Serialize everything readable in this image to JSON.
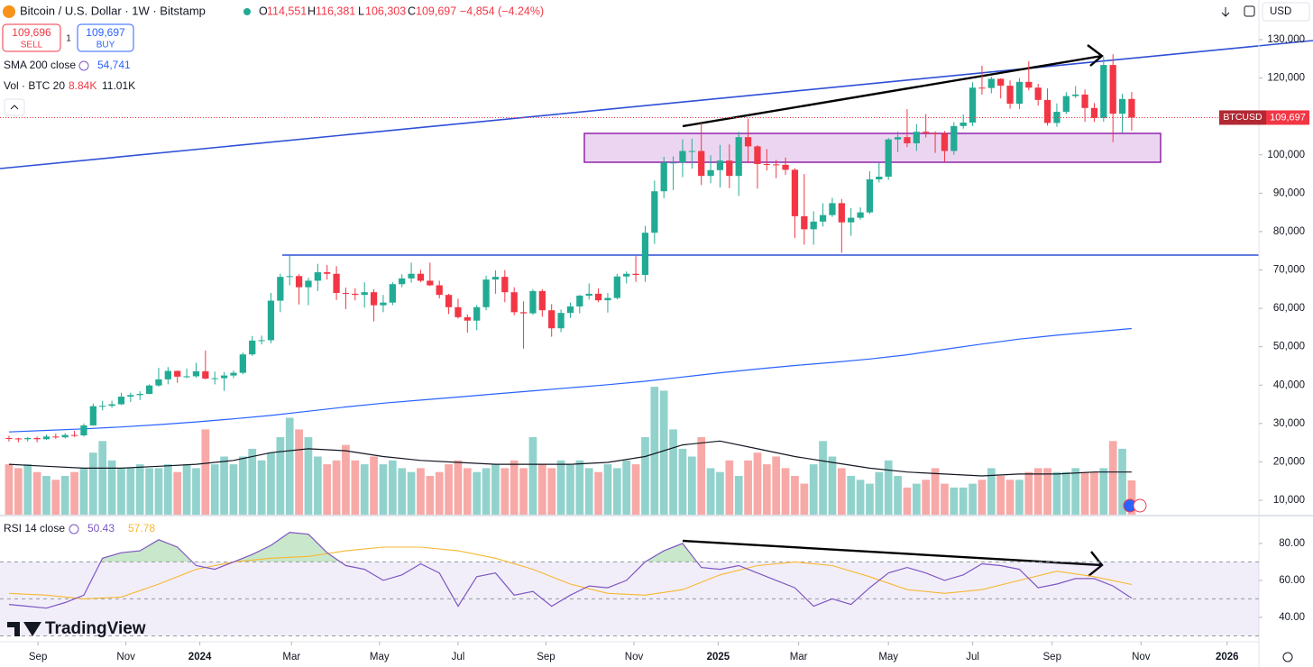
{
  "header": {
    "symbol": "Bitcoin / U.S. Dollar · 1W · Bitstamp",
    "o": "O",
    "o_value": "114,551",
    "h": "H",
    "h_value": "116,381",
    "l": "L",
    "l_value": "106,303",
    "c": "C",
    "c_value": "109,697",
    "change": "−4,854 (−4.24%)",
    "currency": "USD"
  },
  "trade": {
    "sell_price": "109,696",
    "sell": "SELL",
    "quantity": "1",
    "buy_price": "109,697",
    "buy": "BUY"
  },
  "logo": "TradingView",
  "chart_data": [
    {
      "type": "candlestick",
      "up_color": "#22ab94",
      "down_color": "#f23645",
      "open": [
        26200,
        26100,
        25900,
        26200,
        25900,
        26600,
        26400,
        27000,
        26900,
        29500,
        34500,
        34600,
        35000,
        37000,
        37400,
        37700,
        39900,
        41500,
        43700,
        42200,
        42300,
        43600,
        41700,
        41800,
        42500,
        43200,
        48000,
        51600,
        51700,
        62000,
        68200,
        68400,
        65500,
        67200,
        69400,
        69000,
        64000,
        63800,
        63500,
        64200,
        60800,
        61500,
        66300,
        67800,
        69000,
        67200,
        66000,
        63500,
        60300,
        57700,
        56800,
        60300,
        67500,
        68200,
        64200,
        59000,
        58700,
        64500,
        59500,
        54800,
        58800,
        60500,
        63300,
        63800,
        62100,
        62700,
        68300,
        69000,
        68700,
        79700,
        90500,
        98000,
        98000,
        101000,
        101000,
        94500,
        96000,
        98500,
        94500,
        104600,
        102200,
        97600,
        97500,
        97400,
        96100,
        84000,
        80600,
        82600,
        84300,
        87400,
        82400,
        83600,
        85000,
        93600,
        94300,
        104000,
        104600,
        103000,
        106000,
        105600,
        105500,
        101000,
        107500,
        108400,
        117500,
        117400,
        119800,
        118000,
        113300,
        119000,
        117500,
        114300,
        108300,
        111200,
        115300,
        115700,
        112200,
        109600,
        123400,
        110700,
        114551
      ],
      "high": [
        26800,
        26300,
        26500,
        26600,
        27100,
        27400,
        27500,
        28100,
        30000,
        35200,
        35900,
        35900,
        38000,
        38000,
        38400,
        40200,
        44500,
        44700,
        43800,
        44300,
        45800,
        49000,
        43500,
        43400,
        43800,
        48500,
        52800,
        52900,
        64000,
        69000,
        73800,
        68900,
        68000,
        71600,
        71300,
        71000,
        65400,
        65200,
        66800,
        65000,
        63500,
        66800,
        68900,
        71900,
        70000,
        71900,
        67200,
        63800,
        62500,
        58400,
        60900,
        68500,
        69900,
        70000,
        65500,
        61800,
        65000,
        65000,
        61100,
        59700,
        61500,
        63500,
        66500,
        65200,
        64000,
        69000,
        69600,
        73600,
        81500,
        93300,
        99500,
        99600,
        104000,
        104200,
        108300,
        99900,
        102600,
        102700,
        106000,
        109400,
        102500,
        101500,
        98700,
        99300,
        96500,
        95000,
        85300,
        87400,
        88800,
        88500,
        86100,
        86300,
        95700,
        97900,
        104400,
        106000,
        111900,
        108000,
        110600,
        106100,
        106200,
        108500,
        110500,
        118900,
        123200,
        120400,
        119900,
        119400,
        120000,
        124400,
        118500,
        117300,
        113400,
        116300,
        117900,
        117000,
        113500,
        125500,
        126200,
        115900,
        116381
      ],
      "low": [
        25300,
        25100,
        25300,
        25100,
        25700,
        26000,
        26100,
        26500,
        26600,
        29400,
        33400,
        34100,
        34800,
        35600,
        36100,
        37600,
        39600,
        40200,
        40600,
        41800,
        41900,
        41500,
        40200,
        38500,
        41800,
        42800,
        47600,
        50600,
        50900,
        59000,
        66000,
        61000,
        60800,
        64500,
        67500,
        62200,
        59800,
        62100,
        60200,
        56600,
        59000,
        60800,
        65500,
        66700,
        66800,
        65800,
        62600,
        58500,
        57300,
        53700,
        54300,
        59500,
        63800,
        61600,
        58200,
        49500,
        58300,
        57800,
        52600,
        53800,
        57500,
        58700,
        62300,
        61600,
        58900,
        62300,
        66500,
        66900,
        66900,
        76800,
        88700,
        90800,
        94200,
        96400,
        92100,
        92600,
        91500,
        91300,
        89300,
        97800,
        91200,
        95900,
        93900,
        94800,
        78300,
        76600,
        76600,
        81300,
        83800,
        74500,
        78900,
        83100,
        84600,
        92800,
        93500,
        100700,
        102000,
        101000,
        104500,
        100500,
        98200,
        100000,
        106800,
        107500,
        115700,
        116000,
        114700,
        112000,
        111900,
        116800,
        112800,
        107600,
        107300,
        110600,
        114800,
        108600,
        108600,
        108600,
        103300,
        105800,
        106303
      ],
      "close": [
        26100,
        25900,
        26200,
        25900,
        26600,
        26400,
        27000,
        26900,
        29500,
        34500,
        34600,
        35000,
        37000,
        37400,
        37700,
        39900,
        41500,
        43700,
        42200,
        42300,
        43600,
        41700,
        41800,
        42500,
        43200,
        48000,
        51600,
        51700,
        62000,
        68200,
        68400,
        65500,
        67200,
        69400,
        69000,
        64000,
        63800,
        63500,
        64200,
        60800,
        61500,
        66300,
        67800,
        69000,
        67200,
        66000,
        63500,
        60300,
        57700,
        56800,
        60300,
        67500,
        68200,
        64200,
        59000,
        58700,
        64500,
        59500,
        54800,
        58800,
        60500,
        63300,
        63800,
        62100,
        62700,
        68300,
        69000,
        68700,
        79700,
        90500,
        98000,
        98000,
        101000,
        101000,
        94500,
        96000,
        98500,
        94500,
        104600,
        102200,
        97600,
        97500,
        97400,
        96100,
        84000,
        80600,
        82600,
        84300,
        87400,
        82400,
        83600,
        85000,
        93600,
        94300,
        104000,
        104600,
        103000,
        106000,
        105600,
        105500,
        101000,
        107500,
        108400,
        117500,
        117400,
        119800,
        118000,
        113300,
        119000,
        117500,
        114300,
        108300,
        111200,
        115300,
        115700,
        112200,
        109600,
        123400,
        110700,
        114551,
        109697
      ],
      "xlim": [
        -0.96,
        133.5
      ],
      "xticks": [
        {
          "value": 3.1,
          "label": "Sep"
        },
        {
          "value": 12.5,
          "label": "Nov"
        },
        {
          "value": 20.4,
          "label": "2024"
        },
        {
          "value": 30.2,
          "label": "Mar"
        },
        {
          "value": 39.6,
          "label": "May"
        },
        {
          "value": 48,
          "label": "Jul"
        },
        {
          "value": 57.4,
          "label": "Sep"
        },
        {
          "value": 66.8,
          "label": "Nov"
        },
        {
          "value": 75.8,
          "label": "2025"
        },
        {
          "value": 84.4,
          "label": "Mar"
        },
        {
          "value": 94,
          "label": "May"
        },
        {
          "value": 103,
          "label": "Jul"
        },
        {
          "value": 111.5,
          "label": "Sep"
        },
        {
          "value": 121,
          "label": "Nov"
        },
        {
          "value": 130.2,
          "label": "2026"
        }
      ],
      "ylim": [
        6243,
        140333
      ],
      "yticks": [
        {
          "value": 130000,
          "label": "130,000"
        },
        {
          "value": 120000,
          "label": "120,000"
        },
        {
          "value": 110000,
          "label": "110,000"
        },
        {
          "value": 100000,
          "label": "100,000"
        },
        {
          "value": 90000,
          "label": "90,000"
        },
        {
          "value": 80000,
          "label": "80,000"
        },
        {
          "value": 70000,
          "label": "70,000"
        },
        {
          "value": 60000,
          "label": "60,000"
        },
        {
          "value": 50000,
          "label": "50,000"
        },
        {
          "value": 40000,
          "label": "40,000"
        },
        {
          "value": 30000,
          "label": "30,000"
        },
        {
          "value": 20000,
          "label": "20,000"
        },
        {
          "value": 10000,
          "label": "10,000"
        }
      ],
      "price_label": {
        "symbol": "BTCUSD",
        "value_label": "109,697"
      },
      "sma": {
        "name": "SMA 200 close",
        "color": "#2962ff",
        "value_label": "54,741",
        "x": [
          0,
          4,
          8,
          12,
          16,
          20,
          24,
          28,
          32,
          36,
          40,
          44,
          48,
          52,
          56,
          60,
          64,
          68,
          72,
          76,
          80,
          84,
          88,
          92,
          96,
          100,
          104,
          108,
          112,
          116,
          120
        ],
        "values": [
          27800,
          28200,
          28600,
          29100,
          29700,
          30400,
          31200,
          32100,
          33200,
          34300,
          35300,
          36100,
          36900,
          37700,
          38500,
          39300,
          40100,
          41000,
          42100,
          43200,
          44200,
          45100,
          45900,
          46800,
          47900,
          49300,
          50700,
          52000,
          53000,
          53900,
          54741
        ]
      },
      "y2lim": [
        0,
        132.8
      ],
      "volume": {
        "name": "Vol · BTC 20",
        "up_color": "#92d2cc",
        "down_color": "#f7a9a7",
        "value_label": "8.84K",
        "values": [
          13,
          12,
          13,
          11,
          10,
          9,
          10,
          11,
          12,
          16,
          19,
          14,
          12,
          12,
          13,
          12,
          12,
          13,
          11,
          13,
          12,
          22,
          13,
          15,
          13,
          15,
          17,
          14,
          16,
          20,
          25,
          22,
          20,
          15,
          13,
          14,
          18,
          14,
          13,
          15,
          13,
          14,
          12,
          11,
          12,
          10,
          11,
          13,
          14,
          12,
          11,
          12,
          13,
          12,
          14,
          12,
          20,
          13,
          12,
          14,
          13,
          14,
          12,
          11,
          13,
          12,
          14,
          13,
          20,
          33,
          32,
          22,
          17,
          15,
          20,
          12,
          11,
          14,
          10,
          14,
          16,
          13,
          15,
          12,
          10,
          8,
          13,
          19,
          15,
          12,
          10,
          9,
          8,
          11,
          14,
          10,
          7,
          8,
          9,
          12,
          8,
          7,
          7,
          8,
          9,
          12,
          10,
          9,
          9,
          11,
          12,
          12,
          11,
          11,
          12,
          11,
          11,
          12,
          19,
          17,
          8.84
        ],
        "ma": {
          "color": "#131722",
          "value_label": "11.01K",
          "x": [
            0,
            4,
            8,
            12,
            16,
            20,
            24,
            28,
            32,
            36,
            40,
            44,
            48,
            52,
            56,
            60,
            64,
            68,
            72,
            76,
            80,
            84,
            88,
            92,
            96,
            100,
            104,
            108,
            112,
            116,
            120
          ],
          "values": [
            13,
            12.5,
            12,
            12,
            12.5,
            13,
            14,
            16,
            17,
            16.5,
            15,
            14,
            13.5,
            13,
            13,
            13,
            13.5,
            15,
            18,
            19,
            17,
            15,
            13.5,
            12,
            11,
            10.5,
            10,
            10.5,
            10.5,
            11,
            11.01
          ]
        }
      }
    },
    {
      "type": "line",
      "name": "RSI 14 close",
      "color": "#7e57c2",
      "value_label": "50.43",
      "x": [
        0,
        2,
        4,
        6,
        8,
        10,
        12,
        14,
        16,
        18,
        20,
        22,
        24,
        26,
        28,
        30,
        32,
        34,
        36,
        38,
        40,
        42,
        44,
        46,
        48,
        50,
        52,
        54,
        56,
        58,
        60,
        62,
        64,
        66,
        68,
        70,
        72,
        74,
        76,
        78,
        80,
        82,
        84,
        86,
        88,
        90,
        92,
        94,
        96,
        98,
        100,
        102,
        104,
        106,
        108,
        110,
        112,
        114,
        116,
        118,
        120
      ],
      "values": [
        47,
        46,
        45,
        48,
        52,
        72,
        75,
        76,
        82,
        78,
        68,
        66,
        70,
        74,
        79,
        86,
        85,
        75,
        68,
        66,
        60,
        63,
        69,
        64,
        46,
        62,
        64,
        52,
        54,
        46,
        52,
        57,
        56,
        60,
        70,
        76,
        80,
        67,
        66,
        68,
        64,
        60,
        56,
        46,
        50,
        47,
        56,
        64,
        67,
        64,
        60,
        63,
        69,
        68,
        66,
        56,
        58,
        61,
        61,
        57,
        50.43
      ],
      "ma": {
        "color": "#f7b731",
        "value_label": "57.78",
        "x": [
          0,
          4,
          8,
          12,
          16,
          20,
          24,
          28,
          32,
          36,
          40,
          44,
          48,
          52,
          56,
          60,
          64,
          68,
          72,
          76,
          80,
          84,
          88,
          92,
          96,
          100,
          104,
          108,
          112,
          116,
          120
        ],
        "values": [
          53,
          52,
          50,
          51,
          58,
          66,
          70,
          72,
          73,
          76,
          78,
          78,
          76,
          72,
          66,
          58,
          53,
          52,
          55,
          63,
          68,
          70,
          68,
          62,
          55,
          53,
          55,
          60,
          65,
          62,
          57.78
        ]
      },
      "ylim": [
        26.8,
        94.6
      ],
      "yticks": [
        {
          "value": 80,
          "label": "80.00"
        },
        {
          "value": 60,
          "label": "60.00"
        },
        {
          "value": 40,
          "label": "40.00"
        }
      ],
      "bands": [
        70,
        50,
        30
      ]
    }
  ]
}
